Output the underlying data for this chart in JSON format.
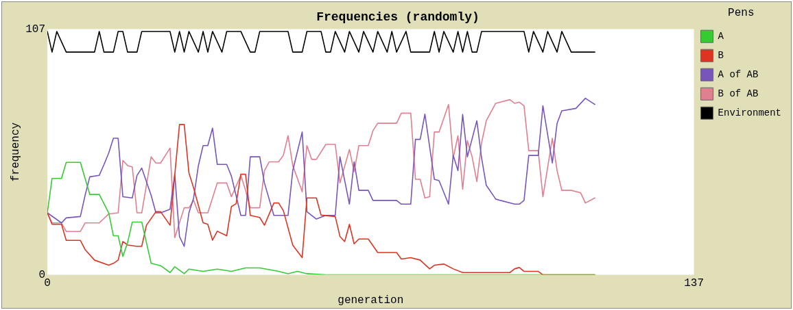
{
  "chart_data": {
    "type": "line",
    "title": "Frequencies (randomly)",
    "xlabel": "generation",
    "ylabel": "frequency",
    "legend_title": "Pens",
    "legend": "top right",
    "grid": false,
    "xlim": [
      0,
      137
    ],
    "xticks": [
      0,
      137
    ],
    "ylim": [
      0,
      107
    ],
    "yticks": [
      0,
      107
    ],
    "series": [
      {
        "name": "A",
        "color": "#33cc33",
        "x": [
          0,
          1,
          3,
          4,
          7,
          8,
          9,
          11,
          13,
          14,
          15,
          16,
          17,
          18,
          20,
          22,
          24,
          26,
          27,
          29,
          30,
          33,
          36,
          39,
          42,
          45,
          49,
          51,
          53,
          55,
          59,
          116
        ],
        "values": [
          27,
          42,
          42,
          49,
          49,
          42,
          35,
          35,
          27,
          17,
          17,
          8,
          14,
          23,
          23,
          5,
          4,
          1,
          3.5,
          0.5,
          2.5,
          1.5,
          2.5,
          1.5,
          3,
          3,
          1.5,
          0.5,
          1.5,
          0.5,
          0,
          0
        ]
      },
      {
        "name": "B",
        "color": "#dd3322",
        "x": [
          0,
          1,
          3,
          4,
          7,
          8,
          10,
          13,
          14,
          15,
          16,
          17,
          19,
          20,
          21,
          23,
          24,
          26,
          28,
          29,
          30,
          31,
          33,
          34,
          35,
          36,
          38,
          39,
          40,
          41,
          42,
          43,
          45,
          46,
          48,
          49,
          50,
          52,
          54,
          55,
          57,
          58,
          61,
          62,
          63,
          64,
          65,
          66,
          68,
          70,
          74,
          75,
          77,
          79,
          81,
          82,
          84,
          86,
          88,
          98,
          99,
          100,
          101,
          104,
          105,
          116
        ],
        "values": [
          27,
          22,
          22,
          15,
          15,
          11,
          6.4,
          4.2,
          5,
          6.4,
          14.5,
          13,
          12.4,
          12.4,
          21.6,
          27.5,
          27.5,
          21.6,
          65.5,
          65.5,
          44.4,
          37.8,
          22.7,
          22,
          15.1,
          19,
          17,
          29.7,
          31,
          43.8,
          43.8,
          25.9,
          25,
          21.6,
          31.3,
          31.3,
          28,
          12.9,
          7.5,
          33.5,
          33.5,
          26,
          25.4,
          16.7,
          14.5,
          22,
          13.5,
          15.6,
          15.6,
          9.7,
          9.7,
          6.9,
          7.5,
          6.4,
          2.6,
          4.2,
          4.7,
          2.6,
          1,
          1,
          2.6,
          3.2,
          1.5,
          1.5,
          0,
          0
        ]
      },
      {
        "name": "A of AB",
        "color": "#7755bb",
        "x": [
          0,
          3,
          4,
          7,
          8,
          9,
          11,
          12,
          13,
          14,
          15,
          16,
          18,
          19,
          20,
          22,
          23,
          24,
          26,
          27,
          28,
          29,
          30,
          31,
          32,
          33,
          34,
          35,
          36,
          38,
          39,
          41,
          42,
          43,
          45,
          46,
          48,
          51,
          52,
          54,
          55,
          57,
          59,
          61,
          62,
          64,
          65,
          66,
          68,
          69,
          74,
          75,
          77,
          78,
          79,
          80,
          82,
          83,
          85,
          86,
          87,
          88,
          89,
          91,
          92,
          93,
          95,
          96,
          99,
          100,
          101,
          102,
          104,
          105,
          107,
          108,
          109,
          112,
          114,
          116
        ],
        "values": [
          27,
          22.6,
          24.8,
          25.4,
          34.6,
          42.7,
          43.3,
          48,
          53,
          59.5,
          59.5,
          34,
          33.5,
          43.3,
          46.5,
          34.6,
          27,
          27,
          28.6,
          43.8,
          16.7,
          12.4,
          27,
          33.5,
          47.5,
          56.3,
          56.3,
          63.9,
          48.1,
          48.1,
          43,
          25.9,
          25.9,
          51.4,
          51.4,
          40,
          25.9,
          25.9,
          45.4,
          62.2,
          27.5,
          24.3,
          25.9,
          25.9,
          51.4,
          30.8,
          49.2,
          36.8,
          36.8,
          32.4,
          32.4,
          30.8,
          30.8,
          59,
          59,
          70,
          41.6,
          41,
          30.8,
          52,
          45.4,
          69.8,
          51.4,
          67.1,
          51,
          39,
          33,
          32.4,
          30.8,
          30.8,
          32.4,
          52,
          52,
          73.6,
          48.7,
          66,
          71.4,
          72.5,
          76.9,
          74.2
        ]
      },
      {
        "name": "B of AB",
        "color": "#e07f90",
        "x": [
          0,
          1,
          3,
          4,
          7,
          8,
          11,
          13,
          15,
          16,
          17,
          18,
          19,
          20,
          22,
          23,
          24,
          26,
          27,
          29,
          30,
          31,
          32,
          34,
          36,
          38,
          39,
          41,
          42,
          43,
          45,
          46,
          47,
          49,
          50,
          51,
          52,
          54,
          55,
          56,
          57,
          59,
          61,
          62,
          64,
          65,
          66,
          68,
          69,
          70,
          74,
          75,
          77,
          78,
          79,
          80,
          81,
          82,
          83,
          85,
          86,
          87,
          88,
          89,
          90,
          91,
          92,
          93,
          95,
          98,
          99,
          100,
          101,
          102,
          104,
          105,
          107,
          108,
          109,
          111,
          113,
          114,
          116
        ],
        "values": [
          27,
          22.6,
          22.6,
          18.9,
          18.9,
          22.6,
          22.6,
          26.5,
          27,
          49.8,
          47.6,
          47,
          27,
          27,
          51.4,
          48.7,
          48.7,
          55.2,
          16.2,
          29.2,
          29.2,
          32.4,
          27,
          27,
          40,
          40,
          34,
          43.3,
          36.8,
          29.2,
          29.2,
          45.4,
          49.2,
          49.2,
          52,
          60.6,
          47.6,
          36.2,
          56.3,
          50.3,
          50.3,
          56.8,
          56.8,
          40,
          54.6,
          44.9,
          56.3,
          56.3,
          62.8,
          66,
          66,
          70.4,
          70.4,
          41.6,
          41.6,
          33.5,
          34,
          62.2,
          62.2,
          74.2,
          50.9,
          60.6,
          37.3,
          58.4,
          51.4,
          40.6,
          57.4,
          67.1,
          74.7,
          76.3,
          74.7,
          75.2,
          73.6,
          54.1,
          54.1,
          34,
          59.5,
          45.4,
          36.8,
          36.8,
          35.7,
          31.3,
          33.5
        ]
      },
      {
        "name": "Environment",
        "color": "#000000",
        "x": [
          0,
          1,
          2,
          4,
          10,
          11,
          12,
          14,
          15,
          16,
          17,
          19,
          20,
          26,
          27,
          28,
          29,
          30,
          32,
          33,
          34,
          35,
          37,
          38,
          41,
          43,
          44,
          45,
          51,
          52,
          54,
          55,
          58,
          59,
          60,
          61,
          63,
          64,
          66,
          67,
          69,
          70,
          72,
          73,
          74,
          76,
          77,
          79,
          81,
          82,
          83,
          84,
          86,
          87,
          88,
          89,
          90,
          91,
          92,
          101,
          102,
          103,
          105,
          106,
          108,
          109,
          111,
          116
        ],
        "values": [
          106,
          97,
          106,
          97,
          97,
          106,
          97,
          97,
          106,
          106,
          97,
          97,
          106,
          106,
          97,
          106,
          97,
          106,
          97,
          106,
          97,
          106,
          97,
          106,
          106,
          97,
          97,
          106,
          106,
          97,
          97,
          106,
          106,
          97,
          97,
          106,
          97,
          106,
          97,
          106,
          97,
          106,
          97,
          106,
          97,
          106,
          97,
          97,
          97,
          106,
          97,
          106,
          97,
          106,
          97,
          106,
          97,
          97,
          106,
          106,
          97,
          106,
          97,
          106,
          97,
          106,
          97,
          97
        ]
      }
    ]
  }
}
